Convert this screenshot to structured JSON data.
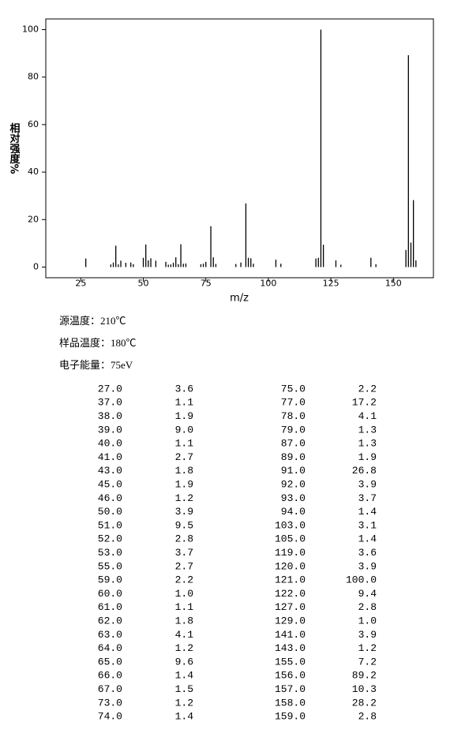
{
  "chart_data": {
    "type": "bar",
    "x_label": "m/z",
    "y_label": "相对强度%",
    "x": [
      27,
      37,
      38,
      39,
      40,
      41,
      43,
      45,
      46,
      50,
      51,
      52,
      53,
      55,
      59,
      60,
      61,
      62,
      63,
      64,
      65,
      66,
      67,
      73,
      74,
      75,
      77,
      78,
      79,
      87,
      89,
      91,
      92,
      93,
      94,
      103,
      105,
      119,
      120,
      121,
      122,
      127,
      129,
      141,
      143,
      155,
      156,
      157,
      158,
      159
    ],
    "x_labels": [
      "27.0",
      "37.0",
      "38.0",
      "39.0",
      "40.0",
      "41.0",
      "43.0",
      "45.0",
      "46.0",
      "50.0",
      "51.0",
      "52.0",
      "53.0",
      "55.0",
      "59.0",
      "60.0",
      "61.0",
      "62.0",
      "63.0",
      "64.0",
      "65.0",
      "66.0",
      "67.0",
      "73.0",
      "74.0",
      "75.0",
      "77.0",
      "78.0",
      "79.0",
      "87.0",
      "89.0",
      "91.0",
      "92.0",
      "93.0",
      "94.0",
      "103.0",
      "105.0",
      "119.0",
      "120.0",
      "121.0",
      "122.0",
      "127.0",
      "129.0",
      "141.0",
      "143.0",
      "155.0",
      "156.0",
      "157.0",
      "158.0",
      "159.0"
    ],
    "values": [
      3.6,
      1.1,
      1.9,
      9.0,
      1.1,
      2.7,
      1.8,
      1.9,
      1.2,
      3.9,
      9.5,
      2.8,
      3.7,
      2.7,
      2.2,
      1.0,
      1.1,
      1.8,
      4.1,
      1.2,
      9.6,
      1.4,
      1.5,
      1.2,
      1.4,
      2.2,
      17.2,
      4.1,
      1.3,
      1.3,
      1.9,
      26.8,
      3.9,
      3.7,
      1.4,
      3.1,
      1.4,
      3.6,
      3.9,
      100.0,
      9.4,
      2.8,
      1.0,
      3.9,
      1.2,
      7.2,
      89.2,
      10.3,
      28.2,
      2.8
    ],
    "value_labels": [
      "3.6",
      "1.1",
      "1.9",
      "9.0",
      "1.1",
      "2.7",
      "1.8",
      "1.9",
      "1.2",
      "3.9",
      "9.5",
      "2.8",
      "3.7",
      "2.7",
      "2.2",
      "1.0",
      "1.1",
      "1.8",
      "4.1",
      "1.2",
      "9.6",
      "1.4",
      "1.5",
      "1.2",
      "1.4",
      "2.2",
      "17.2",
      "4.1",
      "1.3",
      "1.3",
      "1.9",
      "26.8",
      "3.9",
      "3.7",
      "1.4",
      "3.1",
      "1.4",
      "3.6",
      "3.9",
      "100.0",
      "9.4",
      "2.8",
      "1.0",
      "3.9",
      "1.2",
      "7.2",
      "89.2",
      "10.3",
      "28.2",
      "2.8"
    ],
    "color": "#000000",
    "xlim": [
      11,
      166
    ],
    "xticks": [
      25,
      50,
      75,
      100,
      125,
      150
    ],
    "ylim": [
      -4.5,
      104.5
    ],
    "yticks": [
      0,
      20,
      40,
      60,
      80,
      100
    ]
  },
  "conditions": [
    "源温度：210℃",
    "样品温度：180℃",
    "电子能量：75eV"
  ]
}
